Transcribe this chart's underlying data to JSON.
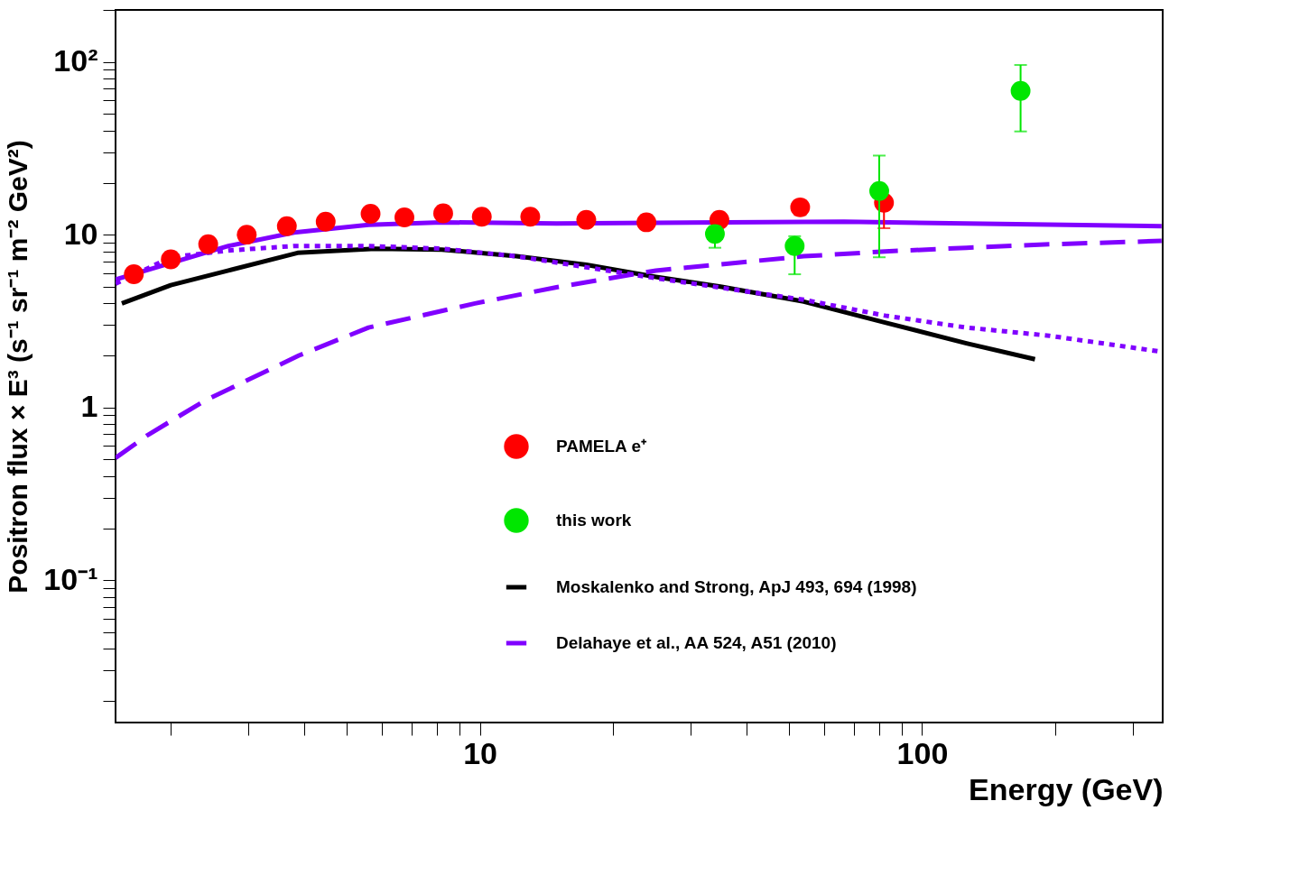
{
  "chart_data": {
    "type": "scatter",
    "xlabel": "Energy (GeV)",
    "ylabel": "Positron flux × E³ (s⁻¹ sr⁻¹ m⁻² GeV²)",
    "log": "xy",
    "grid": false,
    "legend": "bottom right",
    "xlim": [
      1.5,
      350
    ],
    "ylim": [
      0.015,
      200
    ],
    "xticks": [
      {
        "value": 2,
        "label": null
      },
      {
        "value": 3,
        "label": null
      },
      {
        "value": 4,
        "label": null
      },
      {
        "value": 5,
        "label": null
      },
      {
        "value": 6,
        "label": null
      },
      {
        "value": 7,
        "label": null
      },
      {
        "value": 8,
        "label": null
      },
      {
        "value": 9,
        "label": null
      },
      10,
      {
        "value": 20,
        "label": null
      },
      {
        "value": 30,
        "label": null
      },
      {
        "value": 40,
        "label": null
      },
      {
        "value": 50,
        "label": null
      },
      {
        "value": 60,
        "label": null
      },
      {
        "value": 70,
        "label": null
      },
      {
        "value": 80,
        "label": null
      },
      {
        "value": 90,
        "label": null
      },
      100,
      {
        "value": 200,
        "label": null
      },
      {
        "value": 300,
        "label": null
      }
    ],
    "yticks": [
      {
        "value": 0.02,
        "label": null
      },
      {
        "value": 0.03,
        "label": null
      },
      {
        "value": 0.04,
        "label": null
      },
      {
        "value": 0.05,
        "label": null
      },
      {
        "value": 0.06,
        "label": null
      },
      {
        "value": 0.07,
        "label": null
      },
      {
        "value": 0.08,
        "label": null
      },
      {
        "value": 0.09,
        "label": null
      },
      {
        "value": 0.1,
        "label": "10⁻¹"
      },
      {
        "value": 0.2,
        "label": null
      },
      {
        "value": 0.3,
        "label": null
      },
      {
        "value": 0.4,
        "label": null
      },
      {
        "value": 0.5,
        "label": null
      },
      {
        "value": 0.6,
        "label": null
      },
      {
        "value": 0.7,
        "label": null
      },
      {
        "value": 0.8,
        "label": null
      },
      {
        "value": 0.9,
        "label": null
      },
      1,
      {
        "value": 2,
        "label": null
      },
      {
        "value": 3,
        "label": null
      },
      {
        "value": 4,
        "label": null
      },
      {
        "value": 5,
        "label": null
      },
      {
        "value": 6,
        "label": null
      },
      {
        "value": 7,
        "label": null
      },
      {
        "value": 8,
        "label": null
      },
      {
        "value": 9,
        "label": null
      },
      10,
      {
        "value": 20,
        "label": null
      },
      {
        "value": 30,
        "label": null
      },
      {
        "value": 40,
        "label": null
      },
      {
        "value": 50,
        "label": null
      },
      {
        "value": 60,
        "label": null
      },
      {
        "value": 70,
        "label": null
      },
      {
        "value": 80,
        "label": null
      },
      {
        "value": 90,
        "label": null
      },
      {
        "value": 100,
        "label": "10²"
      },
      {
        "value": 200,
        "label": null
      }
    ],
    "series": [
      {
        "name": "PAMELA e⁺",
        "color": "#ff0000",
        "x": [
          1.65,
          2.0,
          2.43,
          2.97,
          3.66,
          4.48,
          5.66,
          6.75,
          8.26,
          10.1,
          13.0,
          17.4,
          23.8,
          34.8,
          53,
          82
        ],
        "values": [
          5.9,
          7.2,
          8.8,
          10.0,
          11.2,
          11.9,
          13.2,
          12.6,
          13.3,
          12.7,
          12.7,
          12.2,
          11.8,
          12.2,
          14.4,
          15.3
        ],
        "errors": [
          null,
          null,
          null,
          null,
          null,
          null,
          null,
          null,
          null,
          null,
          null,
          null,
          null,
          null,
          [
            13.0,
            15.8
          ],
          [
            10.9,
            15.3
          ]
        ]
      },
      {
        "name": "this work",
        "color": "#00e600",
        "x": [
          34,
          51.5,
          80,
          167
        ],
        "values": [
          10.1,
          8.6,
          17.9,
          68
        ],
        "errors": [
          [
            8.4,
            11.2
          ],
          [
            5.9,
            9.8
          ],
          [
            7.4,
            28.7
          ],
          [
            39.6,
            96
          ]
        ]
      },
      {
        "name": "Moskalenko and Strong, ApJ 493, 694 (1998)",
        "type": "line",
        "color": "#000000",
        "line_style": "solid",
        "x": [
          1.55,
          2.0,
          2.7,
          3.87,
          5.8,
          8.2,
          12.1,
          17.4,
          25,
          35,
          54,
          82.5,
          126,
          180
        ],
        "values": [
          4.0,
          5.1,
          6.2,
          7.85,
          8.3,
          8.2,
          7.5,
          6.7,
          5.7,
          5.0,
          4.1,
          3.1,
          2.35,
          1.9
        ]
      },
      {
        "name": "Delahaye et al., AA 524, A51 (2010)",
        "type": "line",
        "color": "#8000ff",
        "line_style": "solid",
        "x": [
          1.5,
          2.7,
          3.8,
          5.6,
          8.2,
          14.9,
          66.5,
          126,
          348
        ],
        "values": [
          5.5,
          8.6,
          10.3,
          11.4,
          11.8,
          11.6,
          11.9,
          11.6,
          11.2
        ]
      },
      {
        "type": "line",
        "color": "#8000ff",
        "line_style": "dotted",
        "x": [
          1.5,
          2.0,
          2.7,
          3.8,
          5.6,
          8.2,
          12.1,
          25,
          54,
          82.5,
          126,
          194,
          348
        ],
        "values": [
          5.2,
          7.4,
          8.1,
          8.6,
          8.6,
          8.3,
          7.5,
          5.6,
          4.2,
          3.4,
          2.9,
          2.6,
          2.1
        ]
      },
      {
        "type": "line",
        "color": "#8000ff",
        "line_style": "dashed",
        "x": [
          1.5,
          1.77,
          2.38,
          2.95,
          3.9,
          5.6,
          9.75,
          14.9,
          25,
          54,
          82.5,
          126,
          194,
          348
        ],
        "values": [
          0.51,
          0.69,
          1.09,
          1.42,
          2.0,
          2.9,
          4.0,
          4.96,
          6.2,
          7.5,
          8.0,
          8.4,
          8.8,
          9.2
        ]
      }
    ]
  }
}
